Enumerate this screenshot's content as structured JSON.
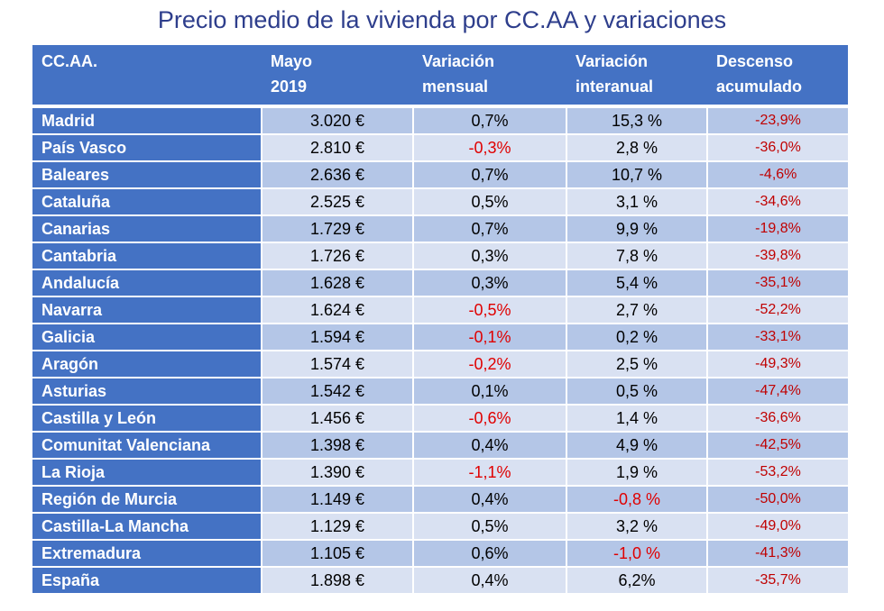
{
  "title": "Precio medio de la vivienda por CC.AA y variaciones",
  "headers": [
    {
      "l1": "CC.AA.",
      "l2": ""
    },
    {
      "l1": "Mayo",
      "l2": "2019"
    },
    {
      "l1": "Variación",
      "l2": "mensual"
    },
    {
      "l1": "Variación",
      "l2": "interanual"
    },
    {
      "l1": "Descenso",
      "l2": "acumulado"
    }
  ],
  "rows": [
    {
      "region": "Madrid",
      "price": "3.020 €",
      "monthly": "0,7%",
      "annual": "15,3 %",
      "accumulated": "-23,9%"
    },
    {
      "region": "País Vasco",
      "price": "2.810 €",
      "monthly": "-0,3%",
      "annual": "2,8 %",
      "accumulated": "-36,0%"
    },
    {
      "region": "Baleares",
      "price": "2.636 €",
      "monthly": "0,7%",
      "annual": "10,7 %",
      "accumulated": "-4,6%"
    },
    {
      "region": "Cataluña",
      "price": "2.525 €",
      "monthly": "0,5%",
      "annual": "3,1 %",
      "accumulated": "-34,6%"
    },
    {
      "region": "Canarias",
      "price": "1.729 €",
      "monthly": "0,7%",
      "annual": "9,9 %",
      "accumulated": "-19,8%"
    },
    {
      "region": "Cantabria",
      "price": "1.726 €",
      "monthly": "0,3%",
      "annual": "7,8 %",
      "accumulated": "-39,8%"
    },
    {
      "region": "Andalucía",
      "price": "1.628 €",
      "monthly": "0,3%",
      "annual": "5,4 %",
      "accumulated": "-35,1%"
    },
    {
      "region": "Navarra",
      "price": "1.624 €",
      "monthly": "-0,5%",
      "annual": "2,7 %",
      "accumulated": "-52,2%"
    },
    {
      "region": "Galicia",
      "price": "1.594 €",
      "monthly": "-0,1%",
      "annual": "0,2 %",
      "accumulated": "-33,1%"
    },
    {
      "region": "Aragón",
      "price": "1.574 €",
      "monthly": "-0,2%",
      "annual": "2,5 %",
      "accumulated": "-49,3%"
    },
    {
      "region": "Asturias",
      "price": "1.542 €",
      "monthly": "0,1%",
      "annual": "0,5 %",
      "accumulated": "-47,4%"
    },
    {
      "region": "Castilla y León",
      "price": "1.456 €",
      "monthly": "-0,6%",
      "annual": "1,4 %",
      "accumulated": "-36,6%"
    },
    {
      "region": "Comunitat Valenciana",
      "price": "1.398 €",
      "monthly": "0,4%",
      "annual": "4,9 %",
      "accumulated": "-42,5%"
    },
    {
      "region": " La Rioja",
      "price": "1.390 €",
      "monthly": "-1,1%",
      "annual": "1,9 %",
      "accumulated": "-53,2%"
    },
    {
      "region": "Región de Murcia",
      "price": "1.149 €",
      "monthly": "0,4%",
      "annual": "-0,8 %",
      "accumulated": "-50,0%"
    },
    {
      "region": "Castilla-La Mancha",
      "price": "1.129 €",
      "monthly": "0,5%",
      "annual": "3,2 %",
      "accumulated": "-49,0%"
    },
    {
      "region": "Extremadura",
      "price": "1.105 €",
      "monthly": "0,6%",
      "annual": "-1,0 %",
      "accumulated": "-41,3%"
    },
    {
      "region": "España",
      "price": "1.898 €",
      "monthly": "0,4%",
      "annual": "6,2%",
      "accumulated": "-35,7%"
    }
  ],
  "colors": {
    "title": "#2e3e8c",
    "header_bg": "#4472c4",
    "row_dark": "#b4c6e7",
    "row_light": "#d9e1f2",
    "negative": "#e00000",
    "accumulated_negative": "#c00000"
  }
}
